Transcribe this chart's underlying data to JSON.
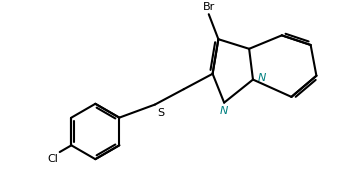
{
  "bond_color": "#000000",
  "background_color": "#ffffff",
  "label_color": "#000000",
  "n_color": "#008080",
  "line_width": 1.5,
  "figsize": [
    3.56,
    1.86
  ],
  "dpi": 100,
  "xlim": [
    0,
    9.0
  ],
  "ylim": [
    0,
    4.7
  ]
}
